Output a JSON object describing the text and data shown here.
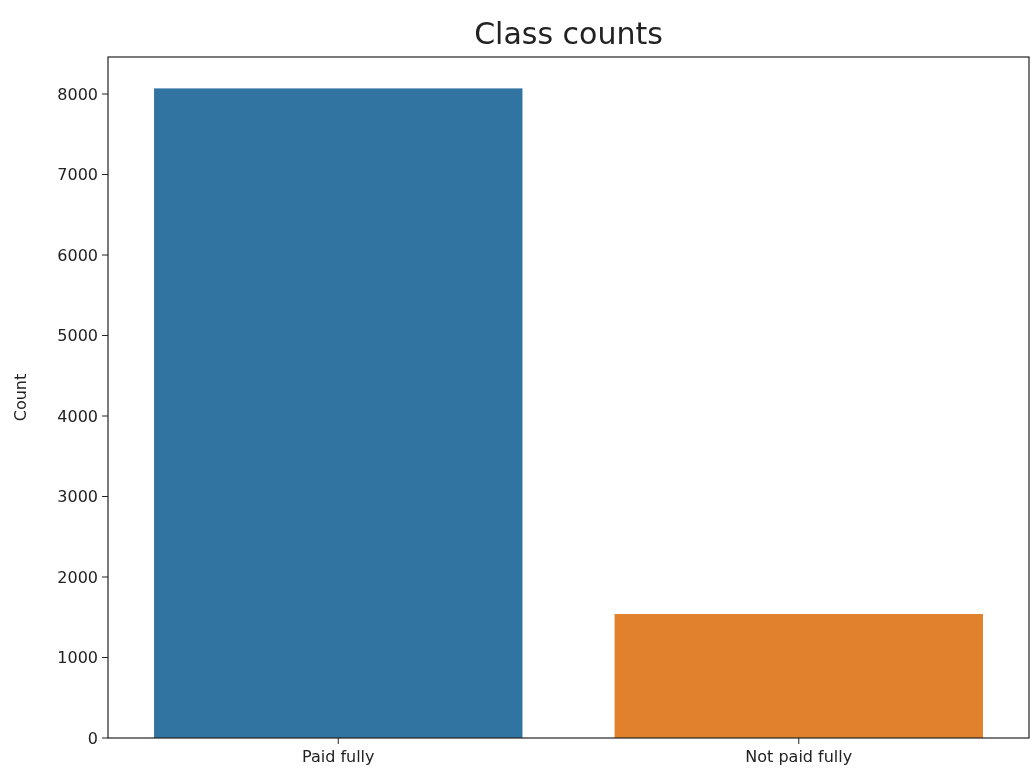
{
  "chart_data": {
    "type": "bar",
    "title": "Class counts",
    "ylabel": "Count",
    "categories": [
      "Paid fully",
      "Not paid fully"
    ],
    "values": [
      8070,
      1540
    ],
    "colors": [
      "#3274a1",
      "#e1812c"
    ],
    "ylim": [
      0,
      8460
    ],
    "yticks": [
      0,
      1000,
      2000,
      3000,
      4000,
      5000,
      6000,
      7000,
      8000
    ],
    "grid": false
  }
}
